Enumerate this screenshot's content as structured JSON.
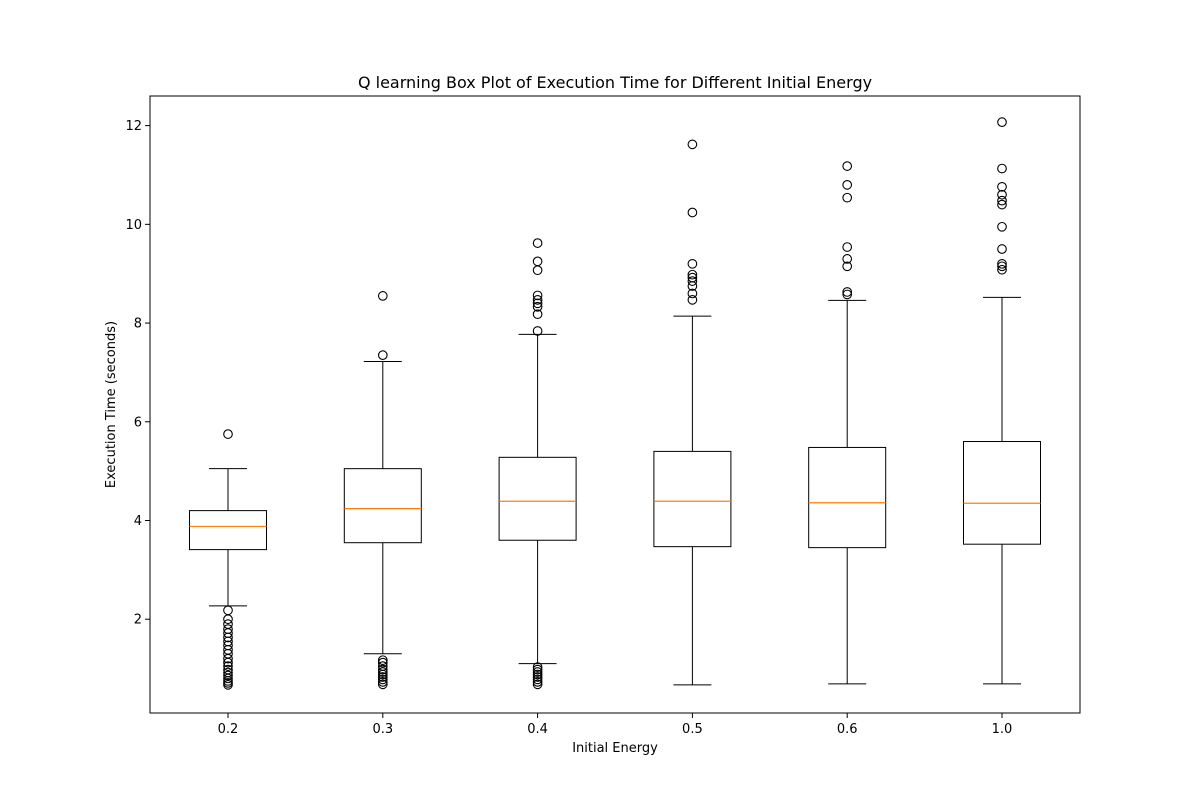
{
  "chart_data": {
    "type": "box",
    "title": "Q learning Box Plot of Execution Time for Different Initial Energy",
    "xlabel": "Initial Energy",
    "ylabel": "Execution Time (seconds)",
    "ylim": [
      0.1,
      12.6
    ],
    "yticks": [
      2,
      4,
      6,
      8,
      10,
      12
    ],
    "grid": false,
    "categories": [
      "0.2",
      "0.3",
      "0.4",
      "0.5",
      "0.6",
      "1.0"
    ],
    "colors": {
      "box": "#000000",
      "median": "#ff7f0e"
    },
    "boxes": [
      {
        "category": "0.2",
        "whisker_low": 2.27,
        "q1": 3.41,
        "median": 3.88,
        "q3": 4.2,
        "whisker_high": 5.05,
        "outliers": [
          5.75,
          2.18,
          2.0,
          1.9,
          1.8,
          1.72,
          1.63,
          1.55,
          1.47,
          1.38,
          1.3,
          1.2,
          1.12,
          1.05,
          0.98,
          0.92,
          0.86,
          0.8,
          0.75,
          0.71,
          0.67
        ]
      },
      {
        "category": "0.3",
        "whisker_low": 1.3,
        "q1": 3.55,
        "median": 4.24,
        "q3": 5.05,
        "whisker_high": 7.22,
        "outliers": [
          8.55,
          7.35,
          1.17,
          1.12,
          1.05,
          0.98,
          0.93,
          0.88,
          0.83,
          0.78,
          0.73,
          0.68
        ]
      },
      {
        "category": "0.4",
        "whisker_low": 1.1,
        "q1": 3.6,
        "median": 4.39,
        "q3": 5.28,
        "whisker_high": 7.77,
        "outliers": [
          9.62,
          9.25,
          9.07,
          8.56,
          8.47,
          8.4,
          8.33,
          8.18,
          7.84,
          1.03,
          0.98,
          0.93,
          0.88,
          0.83,
          0.78,
          0.73,
          0.68
        ]
      },
      {
        "category": "0.5",
        "whisker_low": 0.67,
        "q1": 3.47,
        "median": 4.39,
        "q3": 5.4,
        "whisker_high": 8.14,
        "outliers": [
          11.62,
          10.24,
          9.2,
          8.98,
          8.92,
          8.85,
          8.75,
          8.6,
          8.47
        ]
      },
      {
        "category": "0.6",
        "whisker_low": 0.69,
        "q1": 3.45,
        "median": 4.36,
        "q3": 5.48,
        "whisker_high": 8.46,
        "outliers": [
          11.18,
          10.8,
          10.54,
          9.54,
          9.3,
          9.15,
          8.63,
          8.58
        ]
      },
      {
        "category": "1.0",
        "whisker_low": 0.69,
        "q1": 3.52,
        "median": 4.35,
        "q3": 5.6,
        "whisker_high": 8.52,
        "outliers": [
          12.07,
          11.13,
          10.76,
          10.6,
          10.48,
          10.4,
          9.95,
          9.5,
          9.2,
          9.15,
          9.08
        ]
      }
    ]
  }
}
